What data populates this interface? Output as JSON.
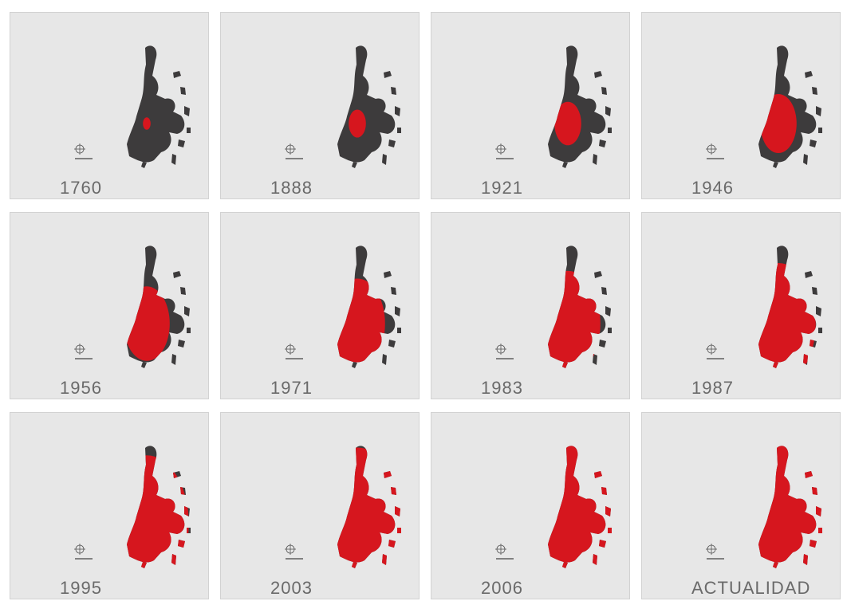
{
  "panels": [
    {
      "label": "1760"
    },
    {
      "label": "1888"
    },
    {
      "label": "1921"
    },
    {
      "label": "1946"
    },
    {
      "label": "1956"
    },
    {
      "label": "1971"
    },
    {
      "label": "1983"
    },
    {
      "label": "1987"
    },
    {
      "label": "1995"
    },
    {
      "label": "2003"
    },
    {
      "label": "2006"
    },
    {
      "label": "ACTUALIDAD"
    }
  ]
}
